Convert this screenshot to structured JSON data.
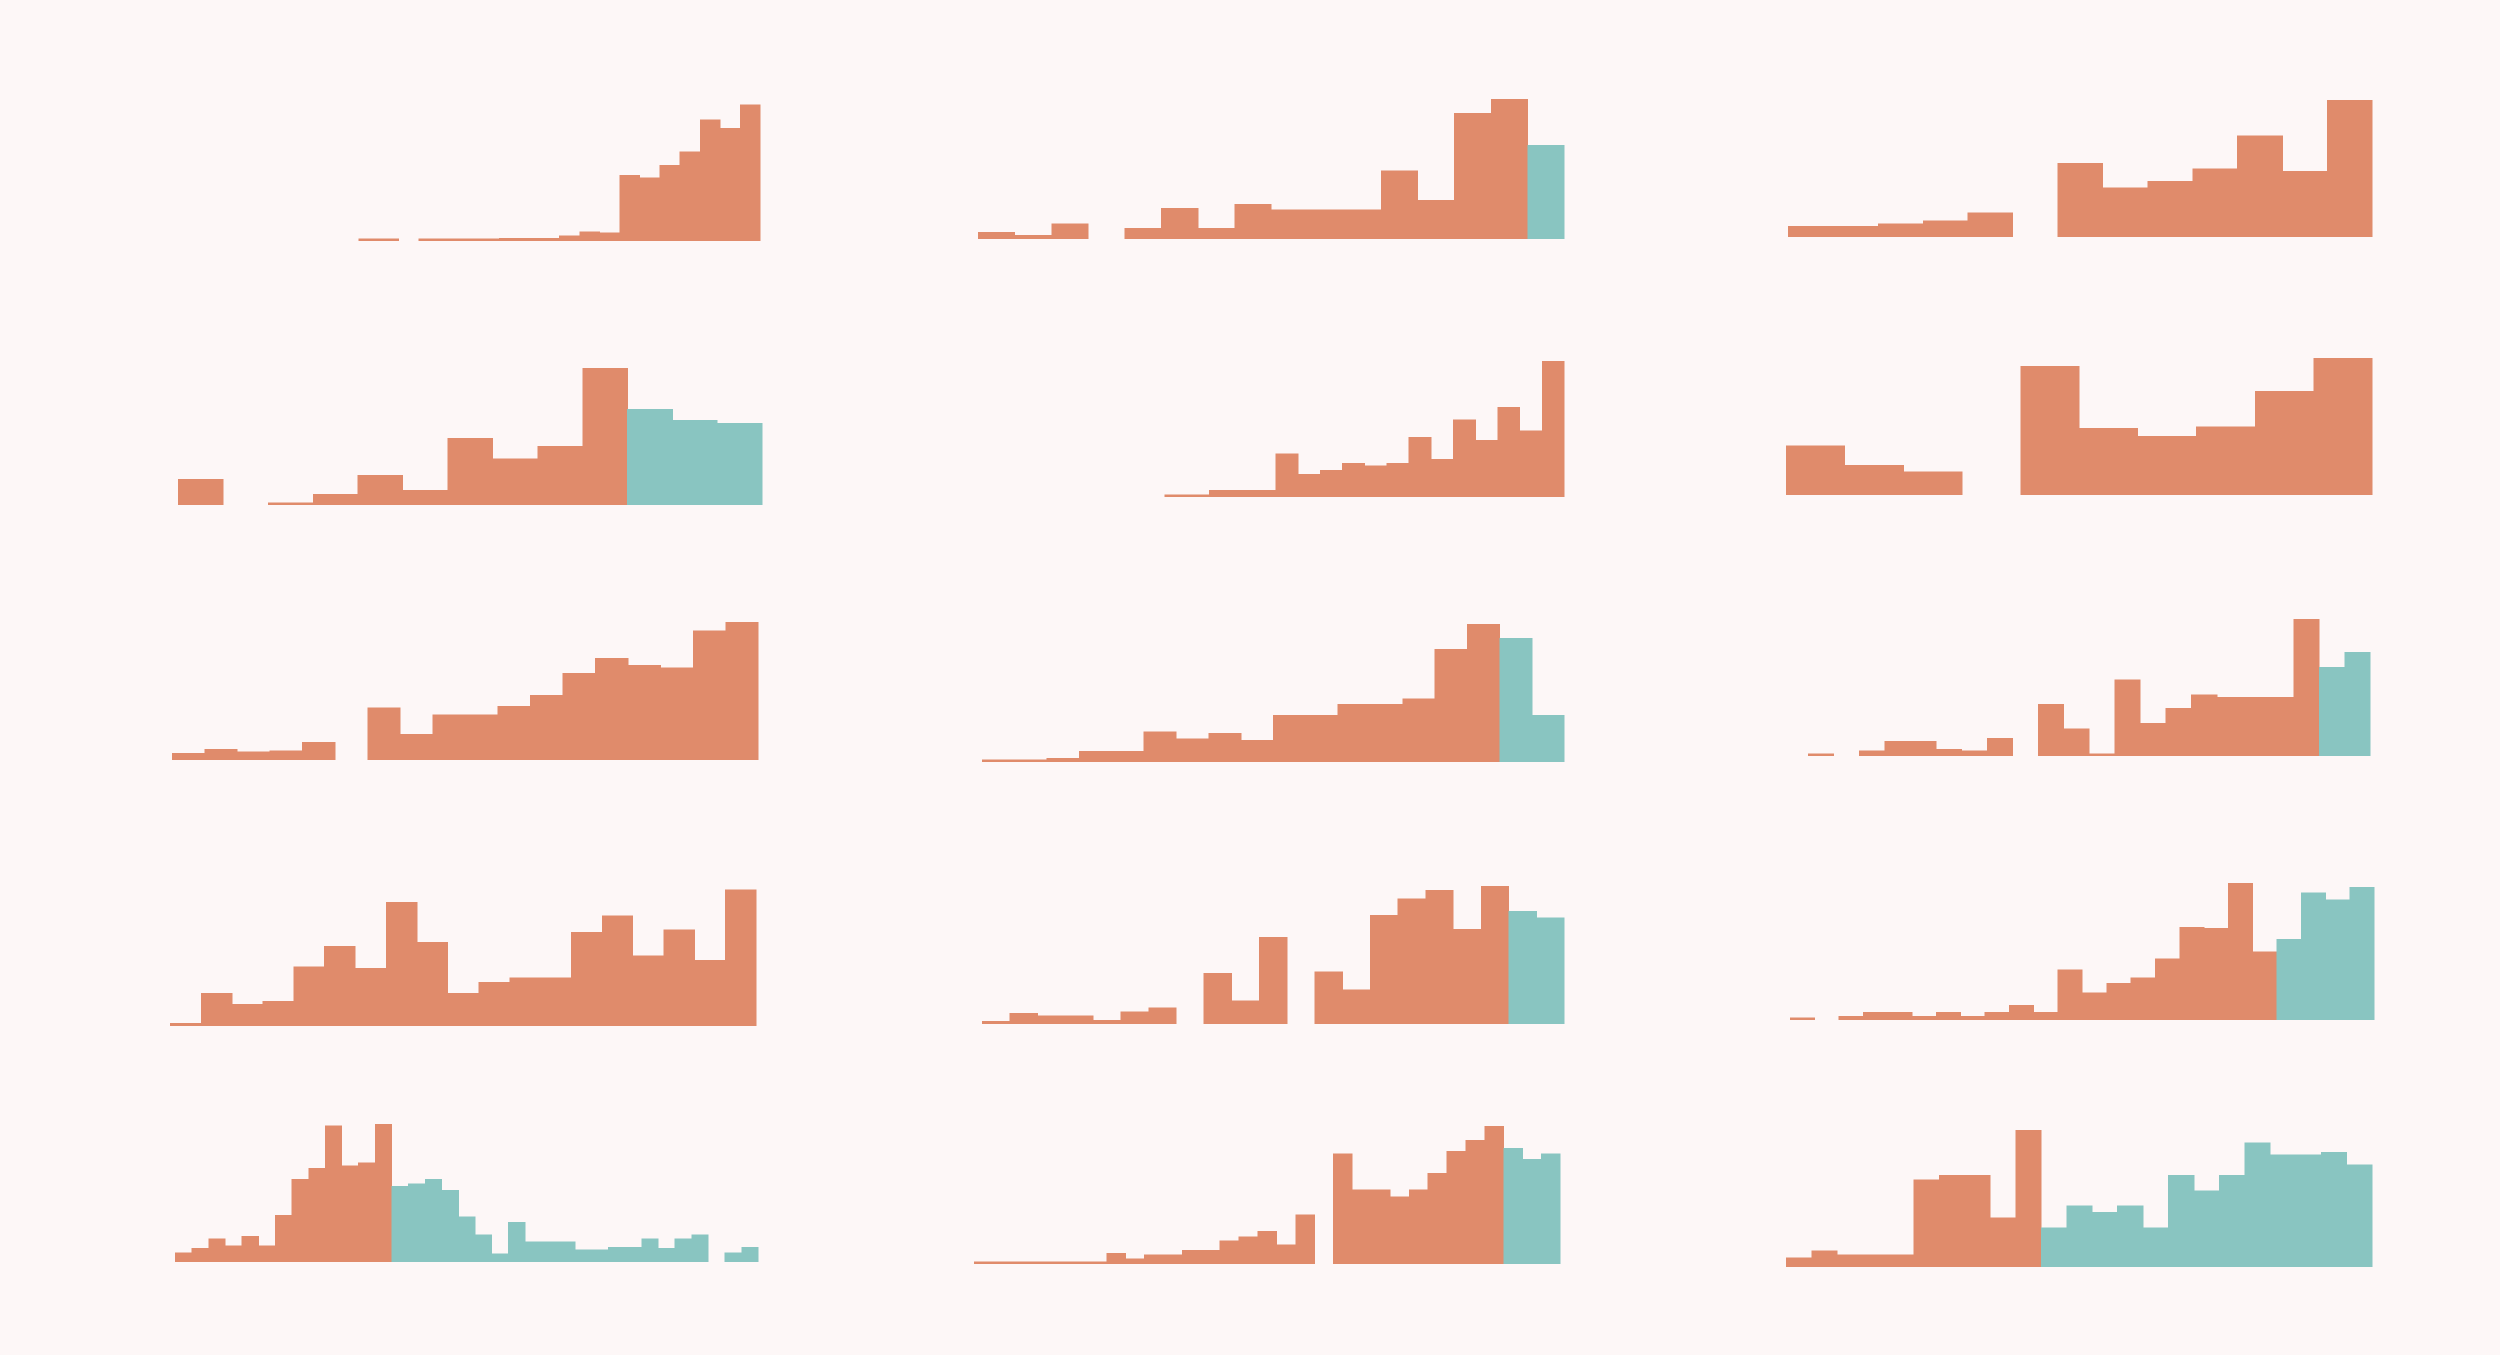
{
  "colors": {
    "background": "#fdf7f7",
    "primary": "#e08b6b",
    "secondary": "#89c5c1"
  },
  "chart_data": [
    {
      "type": "bar",
      "values": [
        null,
        null,
        null,
        null,
        1,
        1,
        null,
        1,
        1,
        1,
        1,
        2,
        2,
        2,
        4,
        7,
        6,
        48,
        46,
        55,
        65,
        88,
        82,
        99
      ],
      "split": 24,
      "ylim": [
        0,
        100
      ]
    },
    {
      "type": "bar",
      "values": [
        5,
        3,
        11,
        null,
        8,
        22,
        8,
        25,
        21,
        21,
        21,
        49,
        28,
        90,
        100,
        67
      ],
      "split": 15,
      "ylim": [
        0,
        100
      ]
    },
    {
      "type": "bar",
      "values": [
        8,
        8,
        10,
        12,
        18,
        null,
        54,
        36,
        41,
        50,
        74,
        48,
        100
      ],
      "split": 13,
      "ylim": [
        0,
        100
      ]
    },
    {
      "type": "bar",
      "values": [
        19,
        null,
        2,
        8,
        22,
        11,
        49,
        34,
        43,
        100,
        70,
        62,
        60
      ],
      "split": 10,
      "ylim": [
        0,
        100
      ]
    },
    {
      "type": "bar",
      "values": [
        null,
        null,
        null,
        null,
        2,
        2,
        5,
        5,
        5,
        32,
        17,
        20,
        25,
        23,
        25,
        44,
        28,
        57,
        42,
        66,
        49,
        100
      ],
      "split": 22,
      "ylim": [
        0,
        100
      ]
    },
    {
      "type": "bar",
      "values": [
        36,
        22,
        17,
        null,
        94,
        49,
        43,
        50,
        76,
        100
      ],
      "split": 10,
      "ylim": [
        0,
        100
      ]
    },
    {
      "type": "bar",
      "values": [
        5,
        8,
        6,
        7,
        13,
        null,
        38,
        19,
        33,
        33,
        39,
        47,
        63,
        74,
        69,
        67,
        94,
        100
      ],
      "split": 18,
      "ylim": [
        0,
        100
      ]
    },
    {
      "type": "bar",
      "values": [
        1,
        1,
        3,
        8,
        8,
        22,
        17,
        21,
        16,
        34,
        34,
        42,
        42,
        46,
        82,
        100,
        90,
        34
      ],
      "split": 16,
      "ylim": [
        0,
        100
      ]
    },
    {
      "type": "bar",
      "values": [
        2,
        null,
        4,
        11,
        11,
        5,
        4,
        13,
        null,
        38,
        20,
        2,
        56,
        24,
        35,
        45,
        43,
        43,
        43,
        100,
        65,
        76
      ],
      "split": 20,
      "ylim": [
        0,
        100
      ]
    },
    {
      "type": "bar",
      "values": [
        2,
        24,
        16,
        18,
        43,
        58,
        42,
        90,
        61,
        24,
        32,
        35,
        35,
        68,
        80,
        51,
        70,
        48,
        99
      ],
      "split": 19,
      "ylim": [
        0,
        100
      ]
    },
    {
      "type": "bar",
      "values": [
        2,
        8,
        6,
        6,
        3,
        9,
        12,
        null,
        37,
        17,
        63,
        null,
        38,
        25,
        79,
        91,
        97,
        69,
        100,
        82,
        77
      ],
      "split": 19,
      "ylim": [
        0,
        100
      ]
    },
    {
      "type": "bar",
      "values": [
        2,
        null,
        3,
        6,
        6,
        3,
        6,
        3,
        6,
        11,
        6,
        37,
        20,
        27,
        31,
        45,
        68,
        67,
        100,
        50,
        59,
        93,
        88,
        97
      ],
      "split": 20,
      "ylim": [
        0,
        100
      ]
    },
    {
      "type": "bar",
      "values": [
        7,
        10,
        17,
        12,
        19,
        12,
        34,
        60,
        68,
        99,
        70,
        72,
        100,
        55,
        57,
        60,
        52,
        33,
        20,
        6,
        29,
        15,
        15,
        15,
        9,
        9,
        11,
        11,
        17,
        10,
        17,
        20,
        null,
        7,
        11
      ],
      "split": 13,
      "ylim": [
        0,
        100
      ]
    },
    {
      "type": "bar",
      "values": [
        1,
        1,
        1,
        1,
        1,
        1,
        1,
        8,
        4,
        7,
        7,
        10,
        10,
        17,
        20,
        24,
        14,
        36,
        null,
        80,
        54,
        54,
        49,
        54,
        66,
        82,
        90,
        100,
        84,
        76,
        80
      ],
      "split": 28,
      "ylim": [
        0,
        100
      ]
    },
    {
      "type": "bar",
      "values": [
        7,
        12,
        9,
        9,
        9,
        64,
        67,
        67,
        36,
        100,
        29,
        45,
        40,
        45,
        29,
        67,
        56,
        67,
        91,
        82,
        82,
        84,
        75
      ],
      "split": 10,
      "ylim": [
        0,
        100
      ]
    }
  ]
}
